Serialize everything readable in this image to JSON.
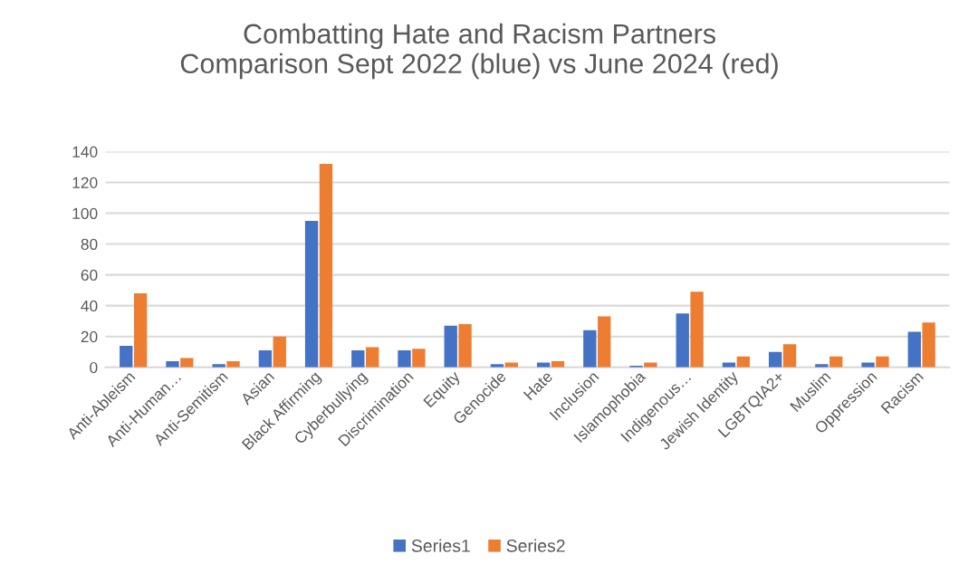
{
  "chart_data": {
    "type": "bar",
    "title": "Combatting Hate and Racism Partners\nComparison Sept 2022 (blue) vs June 2024 (red)",
    "categories": [
      "Anti-Ableism",
      "Anti-Human…",
      "Anti-Semitism",
      "Asian",
      "Black Affirming",
      "Cyberbullying",
      "Discrimination",
      "Equity",
      "Genocide",
      "Hate",
      "Inclusion",
      "Islamophobia",
      "Indigenous…",
      "Jewish Identity",
      "LGBTQIA2+",
      "Muslim",
      "Oppression",
      "Racism"
    ],
    "series": [
      {
        "name": "Series1",
        "color": "#4472c4",
        "values": [
          14,
          4,
          2,
          11,
          95,
          11,
          11,
          27,
          2,
          3,
          24,
          1,
          35,
          3,
          10,
          2,
          3,
          23
        ]
      },
      {
        "name": "Series2",
        "color": "#ed7d31",
        "values": [
          48,
          6,
          4,
          20,
          132,
          13,
          12,
          28,
          3,
          4,
          33,
          3,
          49,
          7,
          15,
          7,
          7,
          29
        ]
      }
    ],
    "ylim": [
      0,
      140
    ],
    "yticks": [
      0,
      20,
      40,
      60,
      80,
      100,
      120,
      140
    ],
    "grid": "y",
    "legend": "bottom"
  }
}
